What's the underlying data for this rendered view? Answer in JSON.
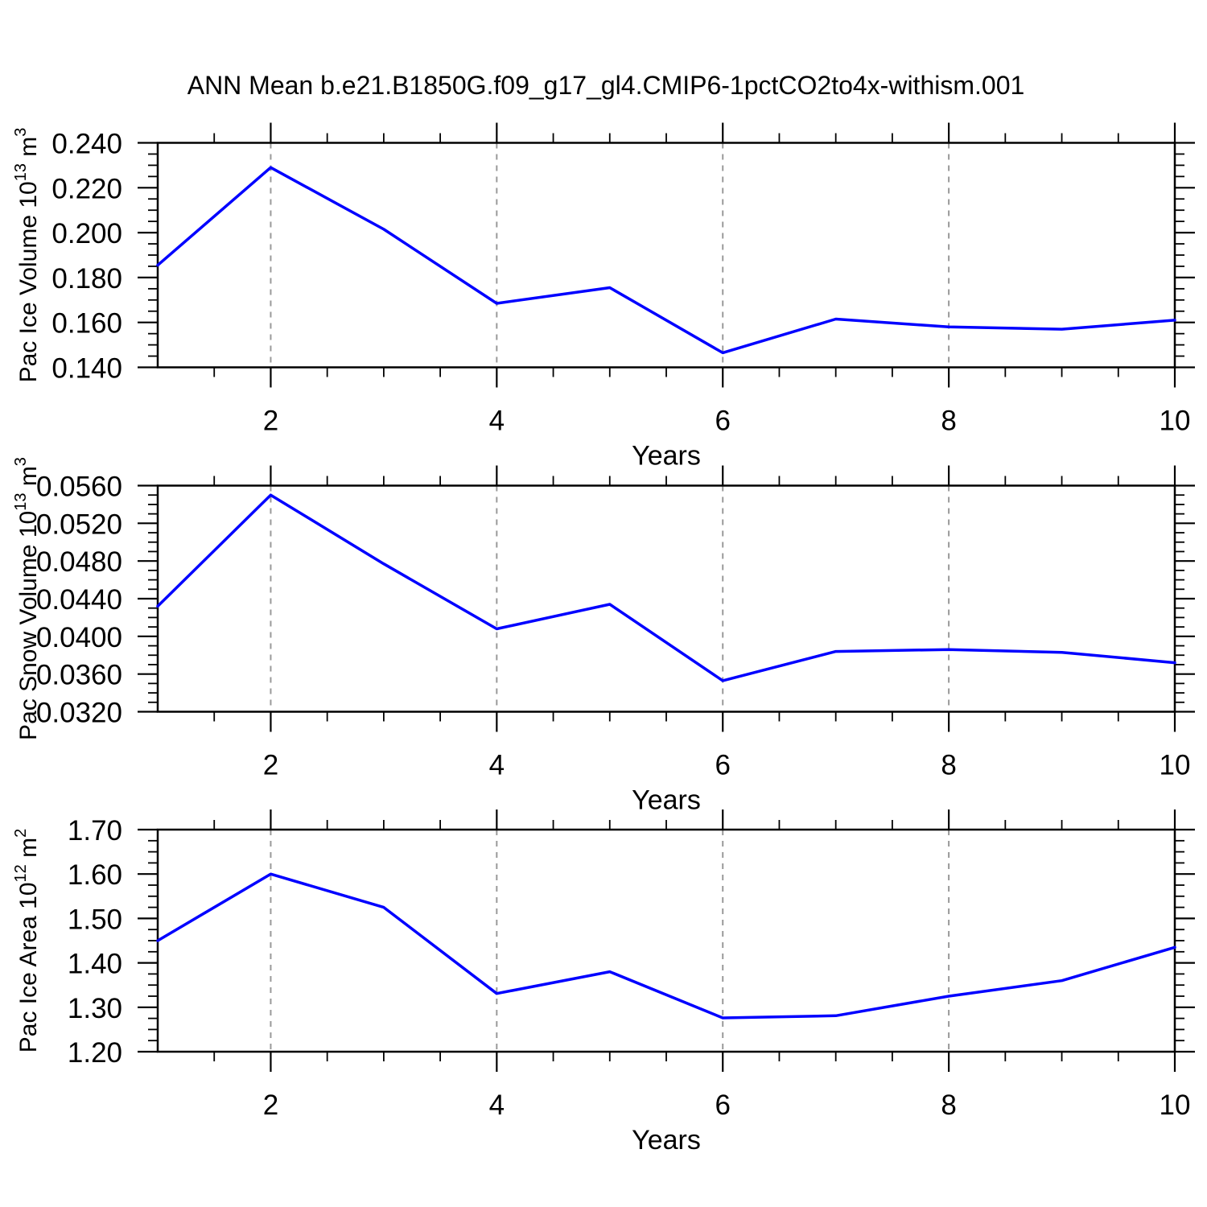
{
  "title": "ANN Mean b.e21.B1850G.f09_g17_gl4.CMIP6-1pctCO2to4x-withism.001",
  "colors": {
    "line": "#0000ff",
    "grid": "#999999",
    "axis": "#000000",
    "text": "#000000",
    "background": "#ffffff"
  },
  "chart_data": [
    {
      "type": "line",
      "name": "pac-ice-volume",
      "title": "",
      "xlabel": "Years",
      "ylabel": "Pac Ice Volume 10^13 m^3",
      "ylabel_segments": [
        {
          "text": "Pac Ice Volume 10",
          "sup": false
        },
        {
          "text": "13",
          "sup": true
        },
        {
          "text": " m",
          "sup": false
        },
        {
          "text": "3",
          "sup": true
        }
      ],
      "x": [
        1,
        2,
        3,
        4,
        5,
        6,
        7,
        8,
        9,
        10
      ],
      "values": [
        0.1855,
        0.229,
        0.2015,
        0.1685,
        0.1755,
        0.1465,
        0.1615,
        0.158,
        0.157,
        0.161
      ],
      "xlim": [
        1,
        10
      ],
      "ylim": [
        0.14,
        0.24
      ],
      "xticks": {
        "values": [
          2,
          4,
          6,
          8,
          10
        ],
        "labels": [
          "2",
          "4",
          "6",
          "8",
          "10"
        ],
        "minor_step": 0.5
      },
      "yticks": {
        "values": [
          0.14,
          0.16,
          0.18,
          0.2,
          0.22,
          0.24
        ],
        "labels": [
          "0.140",
          "0.160",
          "0.180",
          "0.200",
          "0.220",
          "0.240"
        ],
        "minor_step": 0.005
      },
      "grid_x": [
        2,
        4,
        6,
        8
      ],
      "grid_style": "vertical-dashed",
      "legend": "none"
    },
    {
      "type": "line",
      "name": "pac-snow-volume",
      "title": "",
      "xlabel": "Years",
      "ylabel": "Pac Snow Volume 10^13 m^3",
      "ylabel_segments": [
        {
          "text": "Pac Snow Volume 10",
          "sup": false
        },
        {
          "text": "13",
          "sup": true
        },
        {
          "text": " m",
          "sup": false
        },
        {
          "text": "3",
          "sup": true
        }
      ],
      "x": [
        1,
        2,
        3,
        4,
        5,
        6,
        7,
        8,
        9,
        10
      ],
      "values": [
        0.0432,
        0.055,
        0.0477,
        0.0408,
        0.0434,
        0.0353,
        0.0384,
        0.0386,
        0.0383,
        0.0372
      ],
      "xlim": [
        1,
        10
      ],
      "ylim": [
        0.032,
        0.056
      ],
      "xticks": {
        "values": [
          2,
          4,
          6,
          8,
          10
        ],
        "labels": [
          "2",
          "4",
          "6",
          "8",
          "10"
        ],
        "minor_step": 0.5
      },
      "yticks": {
        "values": [
          0.032,
          0.036,
          0.04,
          0.044,
          0.048,
          0.052,
          0.056
        ],
        "labels": [
          "0.0320",
          "0.0360",
          "0.0400",
          "0.0440",
          "0.0480",
          "0.0520",
          "0.0560"
        ],
        "minor_step": 0.001
      },
      "grid_x": [
        2,
        4,
        6,
        8
      ],
      "grid_style": "vertical-dashed",
      "legend": "none"
    },
    {
      "type": "line",
      "name": "pac-ice-area",
      "title": "",
      "xlabel": "Years",
      "ylabel": "Pac Ice Area 10^12 m^2",
      "ylabel_segments": [
        {
          "text": "Pac Ice Area 10",
          "sup": false
        },
        {
          "text": "12",
          "sup": true
        },
        {
          "text": " m",
          "sup": false
        },
        {
          "text": "2",
          "sup": true
        }
      ],
      "x": [
        1,
        2,
        3,
        4,
        5,
        6,
        7,
        8,
        9,
        10
      ],
      "values": [
        1.45,
        1.6,
        1.525,
        1.331,
        1.38,
        1.276,
        1.281,
        1.325,
        1.36,
        1.435
      ],
      "xlim": [
        1,
        10
      ],
      "ylim": [
        1.2,
        1.7
      ],
      "xticks": {
        "values": [
          2,
          4,
          6,
          8,
          10
        ],
        "labels": [
          "2",
          "4",
          "6",
          "8",
          "10"
        ],
        "minor_step": 0.5
      },
      "yticks": {
        "values": [
          1.2,
          1.3,
          1.4,
          1.5,
          1.6,
          1.7
        ],
        "labels": [
          "1.20",
          "1.30",
          "1.40",
          "1.50",
          "1.60",
          "1.70"
        ],
        "minor_step": 0.025
      },
      "grid_x": [
        2,
        4,
        6,
        8
      ],
      "grid_style": "vertical-dashed",
      "legend": "none"
    }
  ]
}
